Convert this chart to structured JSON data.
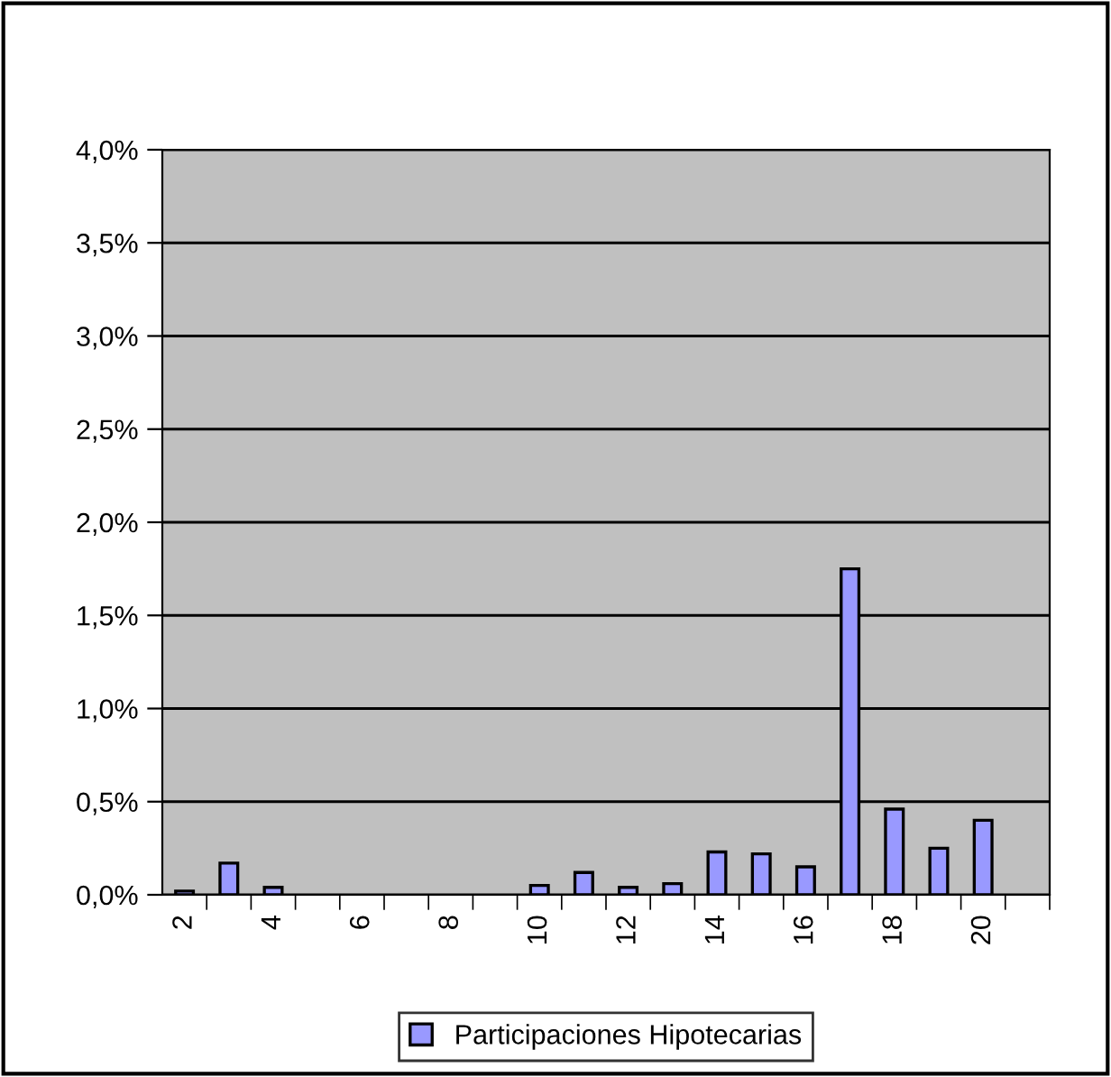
{
  "chart_data": {
    "type": "bar",
    "categories": [
      "2",
      null,
      "4",
      null,
      "6",
      null,
      "8",
      null,
      "10",
      null,
      "12",
      null,
      "14",
      null,
      "16",
      null,
      "18",
      null,
      "20",
      null
    ],
    "series": [
      {
        "name": "Participaciones Hipotecarias",
        "color": "#9999ff",
        "values": [
          0.02,
          0.17,
          0.04,
          null,
          null,
          null,
          null,
          null,
          0.05,
          0.12,
          0.04,
          0.06,
          0.23,
          0.22,
          0.15,
          1.75,
          0.46,
          0.25,
          0.4,
          null
        ]
      }
    ],
    "ylim": [
      0,
      4
    ],
    "yticks": [
      {
        "value": 0,
        "label": "0,0%"
      },
      {
        "value": 0.5,
        "label": "0,5%"
      },
      {
        "value": 1,
        "label": "1,0%"
      },
      {
        "value": 1.5,
        "label": "1,5%"
      },
      {
        "value": 2,
        "label": "2,0%"
      },
      {
        "value": 2.5,
        "label": "2,5%"
      },
      {
        "value": 3,
        "label": "3,0%"
      },
      {
        "value": 3.5,
        "label": "3,5%"
      },
      {
        "value": 4,
        "label": "4,0%"
      }
    ],
    "grid": "y",
    "legend": "bottom"
  }
}
